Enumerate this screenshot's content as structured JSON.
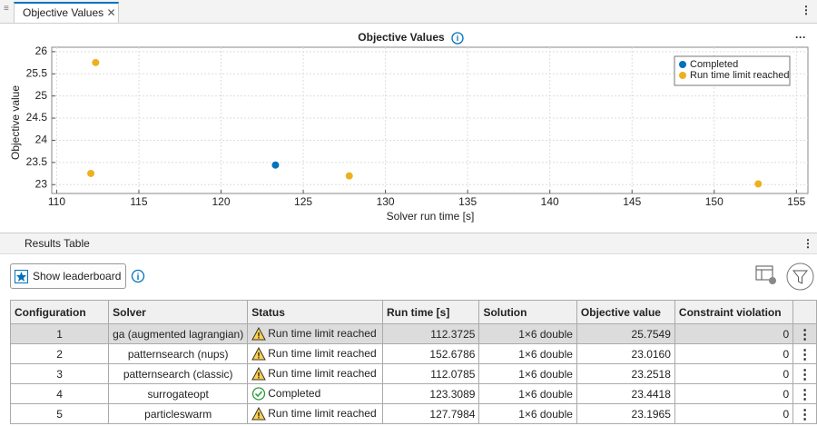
{
  "tab": {
    "label": "Objective Values"
  },
  "chart_data": {
    "type": "scatter",
    "title": "Objective Values",
    "x_label": "Solver run time [s]",
    "y_label": "Objective value",
    "series": [
      {
        "name": "Completed",
        "color": "#0072bd",
        "x": [
          123.3089
        ],
        "values": [
          23.4418
        ]
      },
      {
        "name": "Run time limit reached",
        "color": "#edb120",
        "x": [
          112.3725,
          152.6786,
          112.0785,
          127.7984
        ],
        "values": [
          25.7549,
          23.016,
          23.2518,
          23.1965
        ]
      }
    ],
    "xlim": [
      109.7,
      155.7
    ],
    "xticks": [
      110,
      115,
      120,
      125,
      130,
      135,
      140,
      145,
      150,
      155
    ],
    "ylim": [
      22.8,
      26.1
    ],
    "yticks": [
      23,
      23.5,
      24,
      24.5,
      25,
      25.5,
      26
    ],
    "grid": true,
    "legend": "upper right"
  },
  "results": {
    "title": "Results Table",
    "button": "Show leaderboard",
    "table": {
      "columns": [
        "Configuration",
        "Solver",
        "Status",
        "Run time [s]",
        "Solution",
        "Objective value",
        "Constraint violation"
      ],
      "rows": [
        [
          "1",
          "ga (augmented lagrangian)",
          "Run time limit reached",
          "112.3725",
          "1×6 double",
          "25.7549",
          "0"
        ],
        [
          "2",
          "patternsearch (nups)",
          "Run time limit reached",
          "152.6786",
          "1×6 double",
          "23.0160",
          "0"
        ],
        [
          "3",
          "patternsearch (classic)",
          "Run time limit reached",
          "112.0785",
          "1×6 double",
          "23.2518",
          "0"
        ],
        [
          "4",
          "surrogateopt",
          "Completed",
          "123.3089",
          "1×6 double",
          "23.4418",
          "0"
        ],
        [
          "5",
          "particleswarm",
          "Run time limit reached",
          "127.7984",
          "1×6 double",
          "23.1965",
          "0"
        ]
      ]
    }
  }
}
